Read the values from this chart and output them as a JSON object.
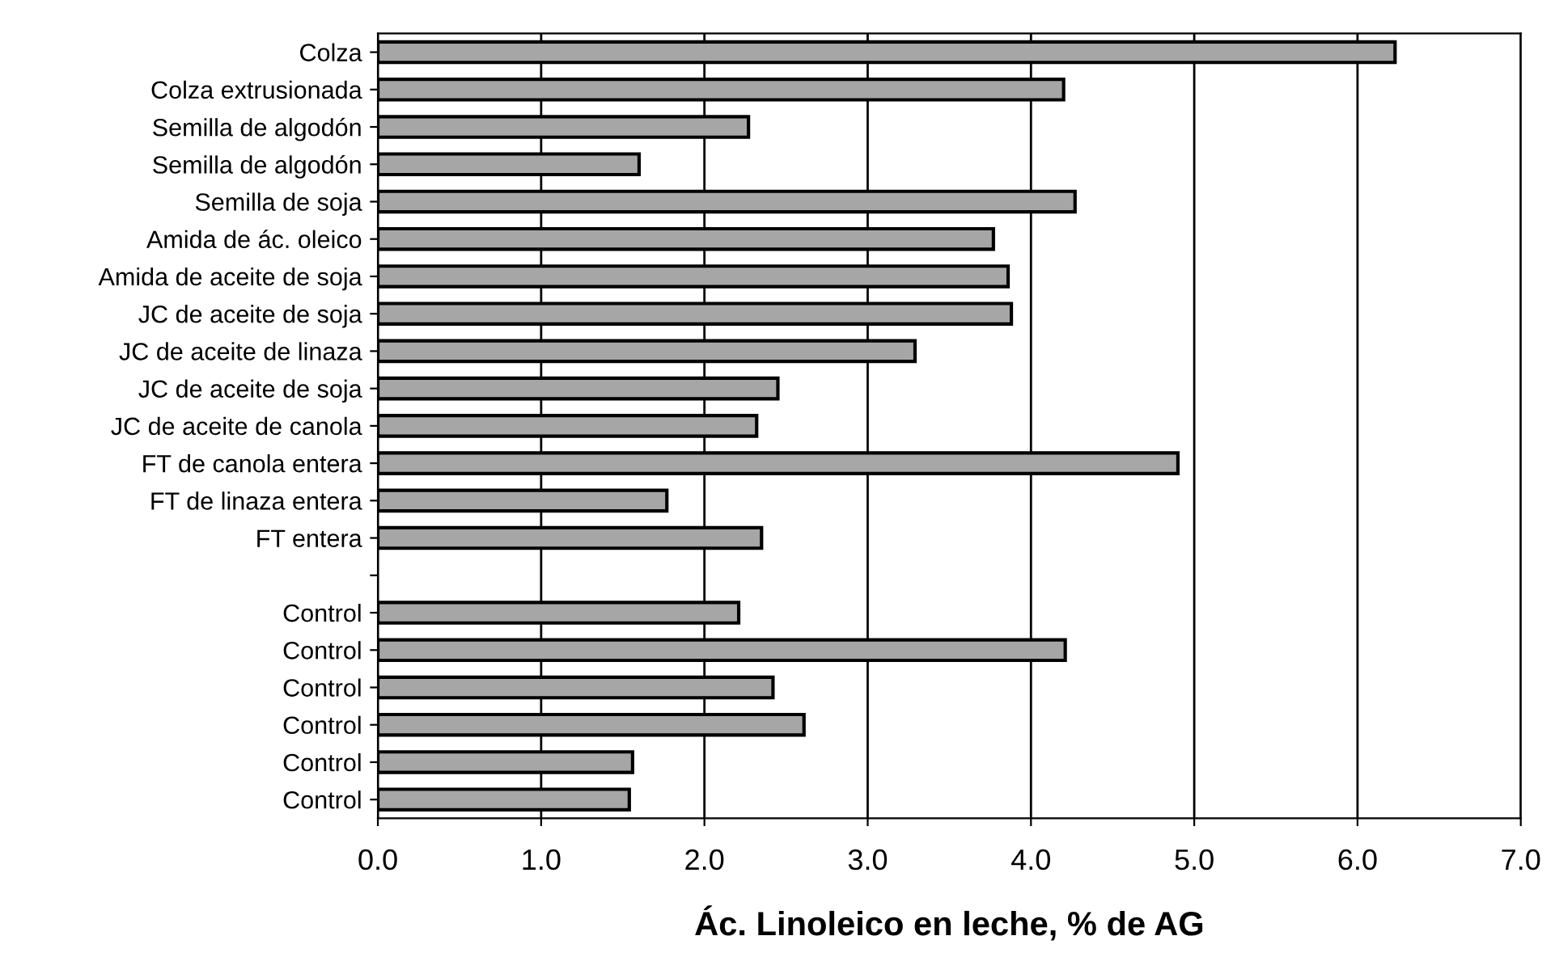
{
  "chart_data": {
    "type": "bar",
    "orientation": "horizontal",
    "xlabel": "Ác. Linoleico en leche, % de AG",
    "categories": [
      "Colza",
      "Colza extrusionada",
      "Semilla de algodón",
      "Semilla de algodón",
      "Semilla de soja",
      "Amida de ác. oleico",
      "Amida de aceite de soja",
      "JC de aceite de soja",
      "JC de aceite de linaza",
      "JC de aceite de soja",
      "JC de aceite de canola",
      "FT de canola entera",
      "FT de linaza entera",
      "FT entera",
      null,
      "Control",
      "Control",
      "Control",
      "Control",
      "Control",
      "Control"
    ],
    "values": [
      6.23,
      4.2,
      2.27,
      1.6,
      4.27,
      3.77,
      3.86,
      3.88,
      3.29,
      2.45,
      2.32,
      4.9,
      1.77,
      2.35,
      null,
      2.21,
      4.21,
      2.42,
      2.61,
      1.56,
      1.54
    ],
    "color": "#a6a6a6",
    "xlim": [
      0,
      7
    ],
    "xticks": [
      {
        "value": 0,
        "label": "0.0"
      },
      {
        "value": 1,
        "label": "1.0"
      },
      {
        "value": 2,
        "label": "2.0"
      },
      {
        "value": 3,
        "label": "3.0"
      },
      {
        "value": 4,
        "label": "4.0"
      },
      {
        "value": 5,
        "label": "5.0"
      },
      {
        "value": 6,
        "label": "6.0"
      },
      {
        "value": 7,
        "label": "7.0"
      }
    ],
    "grid": "x",
    "legend": false
  }
}
